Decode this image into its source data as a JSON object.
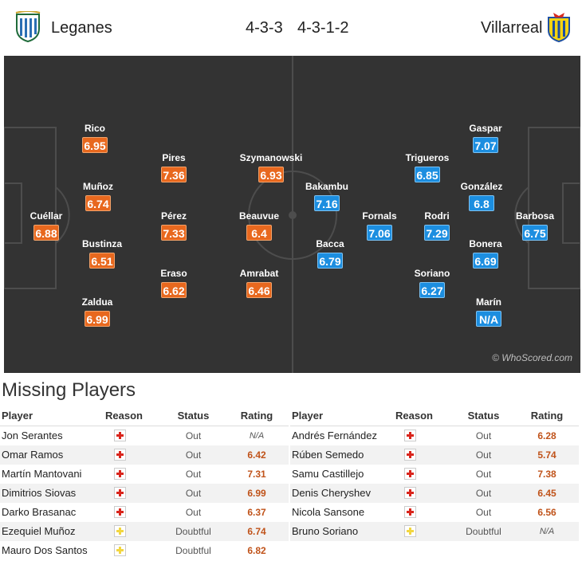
{
  "header": {
    "home_team": "Leganes",
    "away_team": "Villarreal",
    "home_formation": "4-3-3",
    "away_formation": "4-3-1-2",
    "home_crest_icon": "leganes-crest-icon",
    "away_crest_icon": "villarreal-crest-icon"
  },
  "pitch": {
    "watermark": "© WhoScored.com",
    "colors": {
      "pitch": "#333333",
      "home_rating": "#e8681e",
      "away_rating": "#1c8ee0"
    },
    "home_players": [
      {
        "name": "Cuéllar",
        "rating": "6.88"
      },
      {
        "name": "Rico",
        "rating": "6.95"
      },
      {
        "name": "Muñoz",
        "rating": "6.74"
      },
      {
        "name": "Bustinza",
        "rating": "6.51"
      },
      {
        "name": "Zaldua",
        "rating": "6.99"
      },
      {
        "name": "Pires",
        "rating": "7.36"
      },
      {
        "name": "Pérez",
        "rating": "7.33"
      },
      {
        "name": "Eraso",
        "rating": "6.62"
      },
      {
        "name": "Szymanowski",
        "rating": "6.93"
      },
      {
        "name": "Beauvue",
        "rating": "6.4"
      },
      {
        "name": "Amrabat",
        "rating": "6.46"
      }
    ],
    "away_players": [
      {
        "name": "Barbosa",
        "rating": "6.75"
      },
      {
        "name": "Gaspar",
        "rating": "7.07"
      },
      {
        "name": "González",
        "rating": "6.8"
      },
      {
        "name": "Bonera",
        "rating": "6.69"
      },
      {
        "name": "Marín",
        "rating": "N/A"
      },
      {
        "name": "Trigueros",
        "rating": "6.85"
      },
      {
        "name": "Rodri",
        "rating": "7.29"
      },
      {
        "name": "Soriano",
        "rating": "6.27"
      },
      {
        "name": "Fornals",
        "rating": "7.06"
      },
      {
        "name": "Bakambu",
        "rating": "7.16"
      },
      {
        "name": "Bacca",
        "rating": "6.79"
      }
    ]
  },
  "missing": {
    "title": "Missing Players",
    "columns": {
      "player": "Player",
      "reason": "Reason",
      "status": "Status",
      "rating": "Rating"
    },
    "home": [
      {
        "player": "Jon Serantes",
        "reason": "injury",
        "status": "Out",
        "rating": "N/A"
      },
      {
        "player": "Omar Ramos",
        "reason": "injury",
        "status": "Out",
        "rating": "6.42"
      },
      {
        "player": "Martín Mantovani",
        "reason": "injury",
        "status": "Out",
        "rating": "7.31"
      },
      {
        "player": "Dimitrios Siovas",
        "reason": "injury",
        "status": "Out",
        "rating": "6.99"
      },
      {
        "player": "Darko Brasanac",
        "reason": "injury",
        "status": "Out",
        "rating": "6.37"
      },
      {
        "player": "Ezequiel Muñoz",
        "reason": "doubtful",
        "status": "Doubtful",
        "rating": "6.74"
      },
      {
        "player": "Mauro Dos Santos",
        "reason": "doubtful",
        "status": "Doubtful",
        "rating": "6.82"
      }
    ],
    "away": [
      {
        "player": "Andrés Fernández",
        "reason": "injury",
        "status": "Out",
        "rating": "6.28"
      },
      {
        "player": "Rúben Semedo",
        "reason": "injury",
        "status": "Out",
        "rating": "5.74"
      },
      {
        "player": "Samu Castillejo",
        "reason": "injury",
        "status": "Out",
        "rating": "7.38"
      },
      {
        "player": "Denis Cheryshev",
        "reason": "injury",
        "status": "Out",
        "rating": "6.45"
      },
      {
        "player": "Nicola Sansone",
        "reason": "injury",
        "status": "Out",
        "rating": "6.56"
      },
      {
        "player": "Bruno Soriano",
        "reason": "doubtful",
        "status": "Doubtful",
        "rating": "N/A"
      }
    ]
  }
}
